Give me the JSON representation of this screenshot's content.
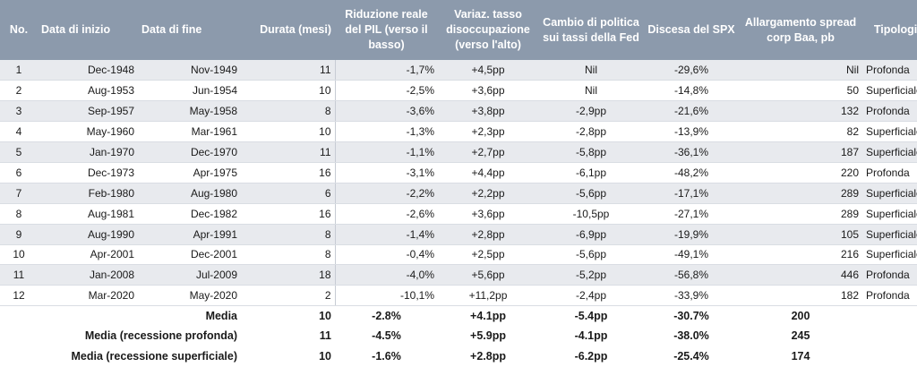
{
  "headers": [
    "No.",
    "Data di inizio",
    "Data di fine",
    "Durata (mesi)",
    "Riduzione reale del PIL (verso il basso)",
    "Variaz. tasso disoccupazione (verso l'alto)",
    "Cambio di politica sui tassi della Fed",
    "Discesa del SPX",
    "Allargamento spread corp Baa, pb",
    "Tipologia"
  ],
  "rows": [
    [
      "1",
      "Dec-1948",
      "Nov-1949",
      "11",
      "-1,7%",
      "+4,5pp",
      "Nil",
      "-29,6%",
      "Nil",
      "Profonda"
    ],
    [
      "2",
      "Aug-1953",
      "Jun-1954",
      "10",
      "-2,5%",
      "+3,6pp",
      "Nil",
      "-14,8%",
      "50",
      "Superficiale"
    ],
    [
      "3",
      "Sep-1957",
      "May-1958",
      "8",
      "-3,6%",
      "+3,8pp",
      "-2,9pp",
      "-21,6%",
      "132",
      "Profonda"
    ],
    [
      "4",
      "May-1960",
      "Mar-1961",
      "10",
      "-1,3%",
      "+2,3pp",
      "-2,8pp",
      "-13,9%",
      "82",
      "Superficiale"
    ],
    [
      "5",
      "Jan-1970",
      "Dec-1970",
      "11",
      "-1,1%",
      "+2,7pp",
      "-5,8pp",
      "-36,1%",
      "187",
      "Superficiale"
    ],
    [
      "6",
      "Dec-1973",
      "Apr-1975",
      "16",
      "-3,1%",
      "+4,4pp",
      "-6,1pp",
      "-48,2%",
      "220",
      "Profonda"
    ],
    [
      "7",
      "Feb-1980",
      "Aug-1980",
      "6",
      "-2,2%",
      "+2,2pp",
      "-5,6pp",
      "-17,1%",
      "289",
      "Superficiale"
    ],
    [
      "8",
      "Aug-1981",
      "Dec-1982",
      "16",
      "-2,6%",
      "+3,6pp",
      "-10,5pp",
      "-27,1%",
      "289",
      "Superficiale"
    ],
    [
      "9",
      "Aug-1990",
      "Apr-1991",
      "8",
      "-1,4%",
      "+2,8pp",
      "-6,9pp",
      "-19,9%",
      "105",
      "Superficiale"
    ],
    [
      "10",
      "Apr-2001",
      "Dec-2001",
      "8",
      "-0,4%",
      "+2,5pp",
      "-5,6pp",
      "-49,1%",
      "216",
      "Superficiale"
    ],
    [
      "11",
      "Jan-2008",
      "Jul-2009",
      "18",
      "-4,0%",
      "+5,6pp",
      "-5,2pp",
      "-56,8%",
      "446",
      "Profonda"
    ],
    [
      "12",
      "Mar-2020",
      "May-2020",
      "2",
      "-10,1%",
      "+11,2pp",
      "-2,4pp",
      "-33,9%",
      "182",
      "Profonda"
    ]
  ],
  "summary": [
    [
      "Media",
      "10",
      "-2.8%",
      "+4.1pp",
      "-5.4pp",
      "-30.7%",
      "200"
    ],
    [
      "Media (recessione profonda)",
      "11",
      "-4.5%",
      "+5.9pp",
      "-4.1pp",
      "-38.0%",
      "245"
    ],
    [
      "Media (recessione superficiale)",
      "10",
      "-1.6%",
      "+2.8pp",
      "-6.2pp",
      "-25.4%",
      "174"
    ]
  ],
  "colors": {
    "header_bg": "#8c9aac",
    "stripe_bg": "#e8eaee",
    "header_text": "#ffffff"
  }
}
